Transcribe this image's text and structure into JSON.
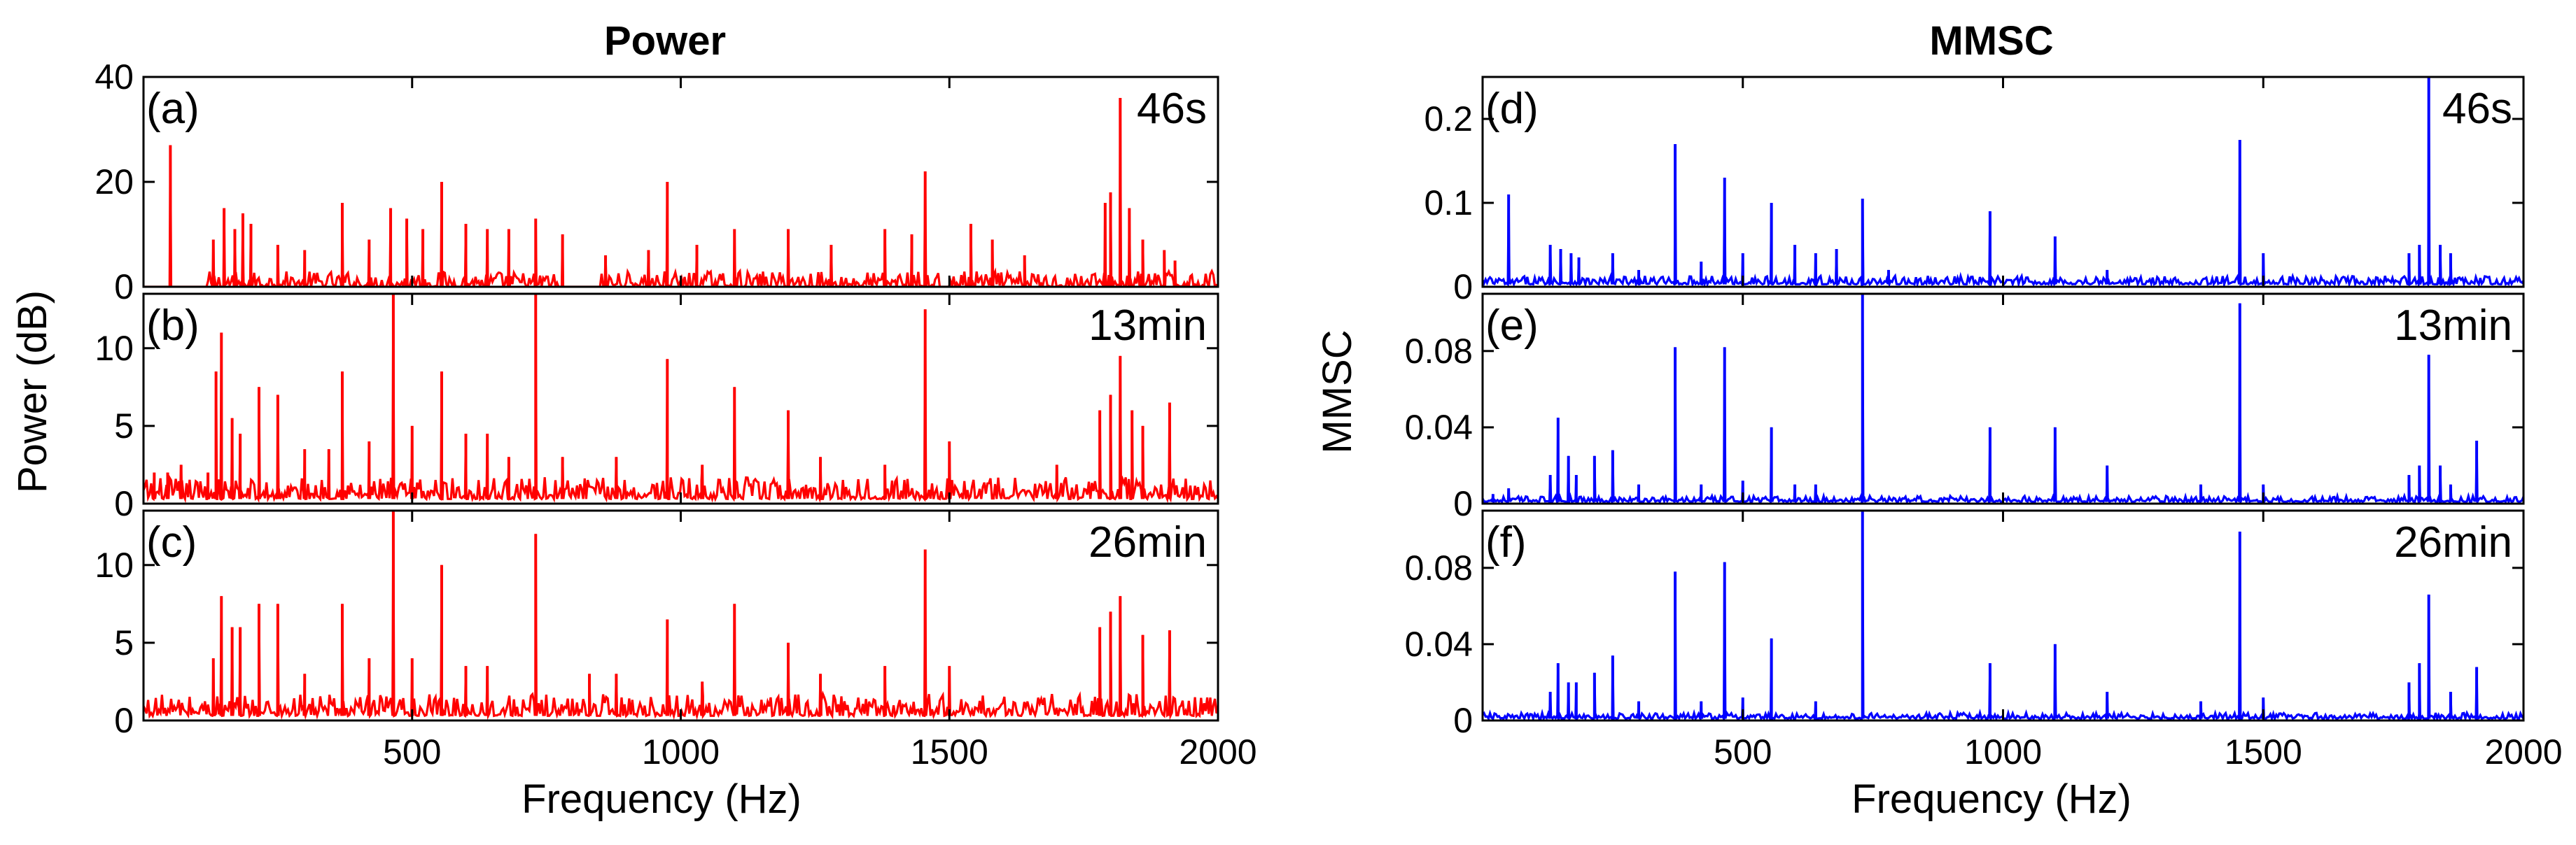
{
  "figure": {
    "titles": {
      "left": "Power",
      "right": "MMSC"
    },
    "ylabels": {
      "left": "Power (dB)",
      "right": "MMSC"
    },
    "xlabel": "Frequency (Hz)"
  },
  "colors": {
    "left": "#ff0000",
    "right": "#0000ff",
    "axis": "#000000"
  },
  "chart_data": [
    {
      "id": "a",
      "label": "(a)",
      "time": "46s",
      "type": "line",
      "column": "left",
      "series_color": "red",
      "ylim": [
        0,
        40
      ],
      "yticks": [
        0,
        20,
        40
      ],
      "ytick_labels": [
        "0",
        "20",
        "40"
      ],
      "xlim": [
        0,
        2000
      ],
      "xticks": [
        500,
        1000,
        1500,
        2000
      ],
      "xtick_labels": [
        "500",
        "1000",
        "1500",
        "2000"
      ],
      "base": 0,
      "noise": 3,
      "noise_start": 120,
      "noise_gaps": [
        [
          770,
          850
        ],
        [
          1480,
          1500
        ]
      ],
      "peaks": [
        [
          50,
          27
        ],
        [
          130,
          9
        ],
        [
          150,
          15
        ],
        [
          170,
          11
        ],
        [
          185,
          14
        ],
        [
          200,
          12
        ],
        [
          250,
          8
        ],
        [
          300,
          7
        ],
        [
          370,
          16
        ],
        [
          420,
          9
        ],
        [
          460,
          15
        ],
        [
          490,
          13
        ],
        [
          520,
          11
        ],
        [
          555,
          20
        ],
        [
          600,
          12
        ],
        [
          640,
          11
        ],
        [
          680,
          11
        ],
        [
          730,
          13
        ],
        [
          780,
          10
        ],
        [
          860,
          6
        ],
        [
          940,
          7
        ],
        [
          975,
          20
        ],
        [
          1030,
          8
        ],
        [
          1100,
          11
        ],
        [
          1200,
          11
        ],
        [
          1280,
          8
        ],
        [
          1380,
          11
        ],
        [
          1430,
          10
        ],
        [
          1455,
          22
        ],
        [
          1540,
          12
        ],
        [
          1580,
          9
        ],
        [
          1640,
          6
        ],
        [
          1790,
          16
        ],
        [
          1800,
          18
        ],
        [
          1818,
          36
        ],
        [
          1835,
          15
        ],
        [
          1860,
          9
        ],
        [
          1900,
          7
        ],
        [
          1920,
          5
        ]
      ]
    },
    {
      "id": "b",
      "label": "(b)",
      "time": "13min",
      "type": "line",
      "column": "left",
      "series_color": "red",
      "ylim": [
        0,
        13.5
      ],
      "yticks": [
        0,
        5,
        10
      ],
      "ytick_labels": [
        "0",
        "5",
        "10"
      ],
      "xlim": [
        0,
        2000
      ],
      "xticks": [
        500,
        1000,
        1500,
        2000
      ],
      "xtick_labels": [
        "500",
        "1000",
        "1500",
        "2000"
      ],
      "base": 0.3,
      "noise": 1.4,
      "noise_start": 0,
      "peaks": [
        [
          20,
          2
        ],
        [
          45,
          2
        ],
        [
          70,
          2.5
        ],
        [
          120,
          2
        ],
        [
          135,
          8.5
        ],
        [
          145,
          11
        ],
        [
          165,
          5.5
        ],
        [
          180,
          4.5
        ],
        [
          215,
          7.5
        ],
        [
          250,
          7
        ],
        [
          300,
          3.5
        ],
        [
          345,
          3.5
        ],
        [
          370,
          8.5
        ],
        [
          420,
          4
        ],
        [
          465,
          14
        ],
        [
          500,
          5
        ],
        [
          555,
          8.5
        ],
        [
          600,
          4.5
        ],
        [
          640,
          4.5
        ],
        [
          680,
          3
        ],
        [
          730,
          14
        ],
        [
          780,
          3
        ],
        [
          880,
          3
        ],
        [
          975,
          9.3
        ],
        [
          1040,
          2.5
        ],
        [
          1100,
          7.5
        ],
        [
          1200,
          6
        ],
        [
          1260,
          3
        ],
        [
          1380,
          2.5
        ],
        [
          1455,
          12.5
        ],
        [
          1500,
          4
        ],
        [
          1700,
          2.5
        ],
        [
          1780,
          6
        ],
        [
          1800,
          7
        ],
        [
          1818,
          9.5
        ],
        [
          1840,
          6
        ],
        [
          1860,
          5
        ],
        [
          1910,
          6.5
        ]
      ]
    },
    {
      "id": "c",
      "label": "(c)",
      "time": "26min",
      "type": "line",
      "column": "left",
      "series_color": "red",
      "ylim": [
        0,
        13.5
      ],
      "yticks": [
        0,
        5,
        10
      ],
      "ytick_labels": [
        "0",
        "5",
        "10"
      ],
      "xlim": [
        0,
        2000
      ],
      "xticks": [
        500,
        1000,
        1500,
        2000
      ],
      "xtick_labels": [
        "500",
        "1000",
        "1500",
        "2000"
      ],
      "base": 0.3,
      "noise": 1.4,
      "noise_start": 0,
      "peaks": [
        [
          130,
          4
        ],
        [
          145,
          8
        ],
        [
          165,
          6
        ],
        [
          180,
          6
        ],
        [
          215,
          7.5
        ],
        [
          250,
          7.5
        ],
        [
          300,
          3
        ],
        [
          370,
          7.5
        ],
        [
          420,
          4
        ],
        [
          465,
          14
        ],
        [
          500,
          4
        ],
        [
          555,
          10
        ],
        [
          600,
          3.5
        ],
        [
          640,
          3.5
        ],
        [
          730,
          12
        ],
        [
          830,
          3
        ],
        [
          880,
          3
        ],
        [
          975,
          6.5
        ],
        [
          1040,
          2.5
        ],
        [
          1100,
          7.5
        ],
        [
          1200,
          5
        ],
        [
          1260,
          3
        ],
        [
          1380,
          3.5
        ],
        [
          1455,
          11
        ],
        [
          1500,
          3.5
        ],
        [
          1780,
          6
        ],
        [
          1800,
          7
        ],
        [
          1818,
          8
        ],
        [
          1860,
          5.5
        ],
        [
          1910,
          5.8
        ]
      ]
    },
    {
      "id": "d",
      "label": "(d)",
      "time": "46s",
      "type": "line",
      "column": "right",
      "series_color": "blue",
      "ylim": [
        0,
        0.25
      ],
      "yticks": [
        0,
        0.1,
        0.2
      ],
      "ytick_labels": [
        "0",
        "0.1",
        "0.2"
      ],
      "xlim": [
        0,
        2000
      ],
      "xticks": [
        500,
        1000,
        1500,
        2000
      ],
      "xtick_labels": [
        "500",
        "1000",
        "1500",
        "2000"
      ],
      "base": 0.003,
      "noise": 0.01,
      "noise_start": 0,
      "peaks": [
        [
          50,
          0.11
        ],
        [
          130,
          0.05
        ],
        [
          150,
          0.045
        ],
        [
          170,
          0.04
        ],
        [
          185,
          0.035
        ],
        [
          250,
          0.04
        ],
        [
          300,
          0.02
        ],
        [
          370,
          0.17
        ],
        [
          420,
          0.03
        ],
        [
          465,
          0.13
        ],
        [
          500,
          0.04
        ],
        [
          555,
          0.1
        ],
        [
          600,
          0.05
        ],
        [
          640,
          0.04
        ],
        [
          680,
          0.045
        ],
        [
          730,
          0.105
        ],
        [
          780,
          0.02
        ],
        [
          975,
          0.09
        ],
        [
          1100,
          0.06
        ],
        [
          1200,
          0.02
        ],
        [
          1455,
          0.175
        ],
        [
          1500,
          0.04
        ],
        [
          1780,
          0.04
        ],
        [
          1800,
          0.05
        ],
        [
          1818,
          0.25
        ],
        [
          1840,
          0.05
        ],
        [
          1860,
          0.04
        ]
      ]
    },
    {
      "id": "e",
      "label": "(e)",
      "time": "13min",
      "type": "line",
      "column": "right",
      "series_color": "blue",
      "ylim": [
        0,
        0.11
      ],
      "yticks": [
        0,
        0.04,
        0.08
      ],
      "ytick_labels": [
        "0",
        "0.04",
        "0.08"
      ],
      "xlim": [
        0,
        2000
      ],
      "xticks": [
        500,
        1000,
        1500,
        2000
      ],
      "xtick_labels": [
        "500",
        "1000",
        "1500",
        "2000"
      ],
      "base": 0.001,
      "noise": 0.003,
      "noise_start": 0,
      "peaks": [
        [
          20,
          0.005
        ],
        [
          50,
          0.008
        ],
        [
          130,
          0.015
        ],
        [
          145,
          0.045
        ],
        [
          165,
          0.025
        ],
        [
          180,
          0.015
        ],
        [
          215,
          0.025
        ],
        [
          250,
          0.028
        ],
        [
          300,
          0.01
        ],
        [
          370,
          0.082
        ],
        [
          420,
          0.01
        ],
        [
          465,
          0.082
        ],
        [
          500,
          0.012
        ],
        [
          555,
          0.04
        ],
        [
          600,
          0.01
        ],
        [
          640,
          0.01
        ],
        [
          730,
          0.11
        ],
        [
          975,
          0.04
        ],
        [
          1100,
          0.04
        ],
        [
          1200,
          0.02
        ],
        [
          1380,
          0.01
        ],
        [
          1455,
          0.105
        ],
        [
          1500,
          0.01
        ],
        [
          1780,
          0.015
        ],
        [
          1800,
          0.02
        ],
        [
          1818,
          0.078
        ],
        [
          1840,
          0.02
        ],
        [
          1860,
          0.01
        ],
        [
          1910,
          0.033
        ]
      ]
    },
    {
      "id": "f",
      "label": "(f)",
      "time": "26min",
      "type": "line",
      "column": "right",
      "series_color": "blue",
      "ylim": [
        0,
        0.11
      ],
      "yticks": [
        0,
        0.04,
        0.08
      ],
      "ytick_labels": [
        "0",
        "0.04",
        "0.08"
      ],
      "xlim": [
        0,
        2000
      ],
      "xticks": [
        500,
        1000,
        1500,
        2000
      ],
      "xtick_labels": [
        "500",
        "1000",
        "1500",
        "2000"
      ],
      "base": 0.001,
      "noise": 0.003,
      "noise_start": 0,
      "peaks": [
        [
          130,
          0.015
        ],
        [
          145,
          0.03
        ],
        [
          165,
          0.02
        ],
        [
          180,
          0.02
        ],
        [
          215,
          0.025
        ],
        [
          250,
          0.034
        ],
        [
          300,
          0.01
        ],
        [
          370,
          0.078
        ],
        [
          420,
          0.01
        ],
        [
          465,
          0.083
        ],
        [
          500,
          0.012
        ],
        [
          555,
          0.043
        ],
        [
          640,
          0.01
        ],
        [
          730,
          0.11
        ],
        [
          975,
          0.03
        ],
        [
          1100,
          0.04
        ],
        [
          1200,
          0.015
        ],
        [
          1380,
          0.01
        ],
        [
          1455,
          0.099
        ],
        [
          1500,
          0.012
        ],
        [
          1780,
          0.02
        ],
        [
          1800,
          0.03
        ],
        [
          1818,
          0.066
        ],
        [
          1860,
          0.015
        ],
        [
          1910,
          0.028
        ]
      ]
    }
  ]
}
